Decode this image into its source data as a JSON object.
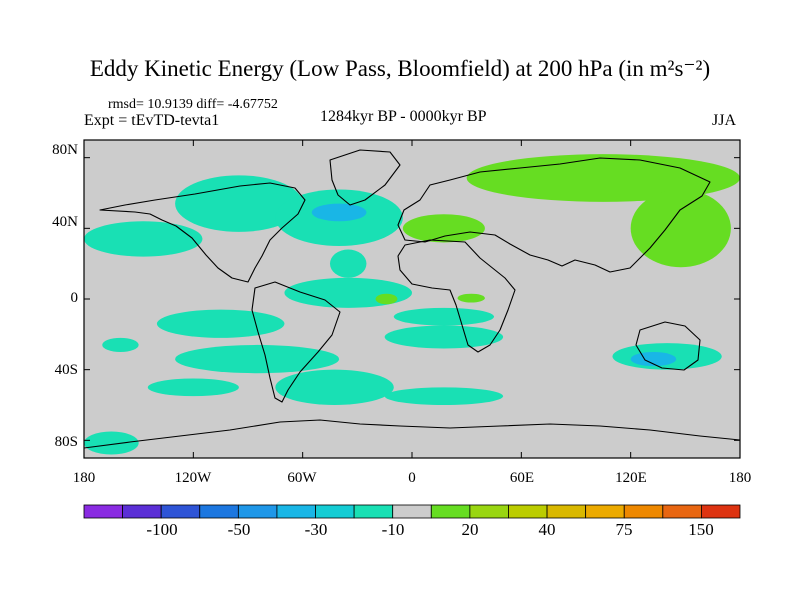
{
  "title": "Eddy Kinetic Energy (Low Pass, Bloomfield) at 200 hPa (in m²s⁻²)",
  "stats_text": "rmsd= 10.9139 diff= -4.67752",
  "experiment_text": "Expt = tEvTD-tevta1",
  "period_text": "1284kyr BP - 0000kyr BP",
  "season_text": "JJA",
  "chart_data": {
    "type": "heatmap",
    "map_projection": "cylindrical-equidistant",
    "lon_range": [
      -180,
      180
    ],
    "lat_range": [
      -90,
      90
    ],
    "xticks": [
      "180",
      "120W",
      "60W",
      "0",
      "60E",
      "120E",
      "180"
    ],
    "yticks": [
      "80N",
      "40N",
      "0",
      "40S",
      "80S"
    ],
    "background_value_color": "#cccccc",
    "colorbar": {
      "colors": [
        "#8a2be2",
        "#5b2fd6",
        "#2e54d6",
        "#1c77e0",
        "#1f97e8",
        "#19b6e6",
        "#14ccd4",
        "#19e0b4",
        "#cccccc",
        "#66dd22",
        "#99d611",
        "#bbcc00",
        "#d9b800",
        "#ecaa00",
        "#ee8800",
        "#e86611",
        "#dd3311"
      ],
      "tick_labels": [
        "-100",
        "-50",
        "-30",
        "-10",
        "20",
        "40",
        "75",
        "150"
      ]
    },
    "anomaly_regions": [
      {
        "lon": [
          -180,
          -115
        ],
        "lat": [
          24,
          44
        ],
        "bin": "-10"
      },
      {
        "lon": [
          -130,
          -60
        ],
        "lat": [
          38,
          70
        ],
        "bin": "-10"
      },
      {
        "lon": [
          -75,
          -5
        ],
        "lat": [
          30,
          62
        ],
        "bin": "-10"
      },
      {
        "lon": [
          -55,
          -25
        ],
        "lat": [
          44,
          54
        ],
        "bin": "-30"
      },
      {
        "lon": [
          -45,
          -25
        ],
        "lat": [
          12,
          28
        ],
        "bin": "-10"
      },
      {
        "lon": [
          -140,
          -70
        ],
        "lat": [
          -22,
          -6
        ],
        "bin": "-10"
      },
      {
        "lon": [
          -70,
          0
        ],
        "lat": [
          -5,
          12
        ],
        "bin": "-10"
      },
      {
        "lon": [
          -130,
          -40
        ],
        "lat": [
          -42,
          -26
        ],
        "bin": "-10"
      },
      {
        "lon": [
          -75,
          -10
        ],
        "lat": [
          -60,
          -40
        ],
        "bin": "-10"
      },
      {
        "lon": [
          -15,
          50
        ],
        "lat": [
          -60,
          -50
        ],
        "bin": "-10"
      },
      {
        "lon": [
          -10,
          45
        ],
        "lat": [
          -15,
          -5
        ],
        "bin": "-10"
      },
      {
        "lon": [
          -15,
          50
        ],
        "lat": [
          -28,
          -15
        ],
        "bin": "-10"
      },
      {
        "lon": [
          110,
          170
        ],
        "lat": [
          -40,
          -25
        ],
        "bin": "-10"
      },
      {
        "lon": [
          120,
          145
        ],
        "lat": [
          -38,
          -30
        ],
        "bin": "-30"
      },
      {
        "lon": [
          -180,
          -150
        ],
        "lat": [
          -88,
          -75
        ],
        "bin": "-10"
      },
      {
        "lon": [
          -170,
          -150
        ],
        "lat": [
          -30,
          -22
        ],
        "bin": "-10"
      },
      {
        "lon": [
          -145,
          -95
        ],
        "lat": [
          -55,
          -45
        ],
        "bin": "-10"
      },
      {
        "lon": [
          30,
          180
        ],
        "lat": [
          55,
          82
        ],
        "bin": "20"
      },
      {
        "lon": [
          120,
          175
        ],
        "lat": [
          18,
          62
        ],
        "bin": "20"
      },
      {
        "lon": [
          -5,
          40
        ],
        "lat": [
          32,
          48
        ],
        "bin": "20"
      },
      {
        "lon": [
          -20,
          -8
        ],
        "lat": [
          -3,
          3
        ],
        "bin": "20"
      },
      {
        "lon": [
          25,
          40
        ],
        "lat": [
          -2,
          3
        ],
        "bin": "20"
      }
    ]
  }
}
